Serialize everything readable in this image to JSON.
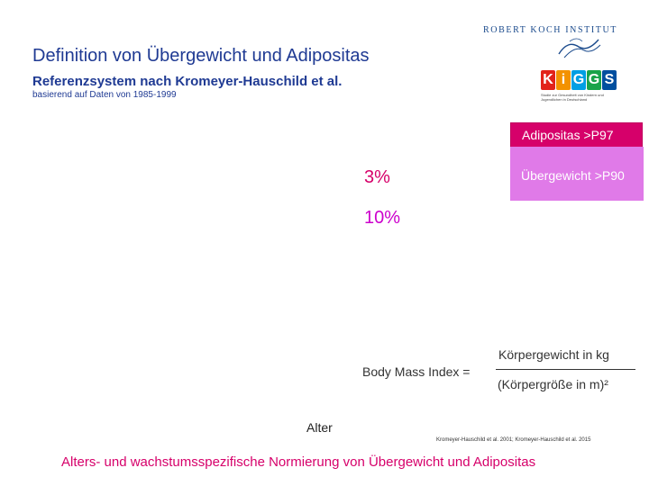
{
  "header": {
    "title": "Definition von Übergewicht und Adipositas",
    "subtitle": "Referenzsystem nach Kromeyer-Hauschild et al.",
    "basis": "basierend auf Daten von 1985-1999"
  },
  "logos": {
    "rki_text": "ROBERT KOCH INSTITUT",
    "kiggs_letters": [
      "K",
      "i",
      "G",
      "G",
      "S"
    ],
    "kiggs_colors": [
      "#e2231a",
      "#f39200",
      "#009fe3",
      "#1aa34a",
      "#004f9f"
    ],
    "kiggs_caption": "Studie zur Gesundheit von Kindern und Jugendlichen in Deutschland"
  },
  "legend": {
    "adipositas": {
      "label": "Adipositas >P97",
      "color": "#d6006a"
    },
    "uebergewicht": {
      "label": "Übergewicht >P90",
      "color": "#e07ae8"
    }
  },
  "percentages": {
    "adipositas_pct": "3%",
    "uebergewicht_pct": "10%"
  },
  "bmi": {
    "label": "Body Mass Index =",
    "numerator": "Körpergewicht in kg",
    "denominator": "(Körpergröße in m)²"
  },
  "axis": {
    "x_label": "Alter"
  },
  "references": "Kromeyer-Hauschild et al. 2001; Kromeyer-Hauschild et al. 2015",
  "footer": "Alters- und wachstumsspezifische Normierung von Übergewicht und Adipositas"
}
